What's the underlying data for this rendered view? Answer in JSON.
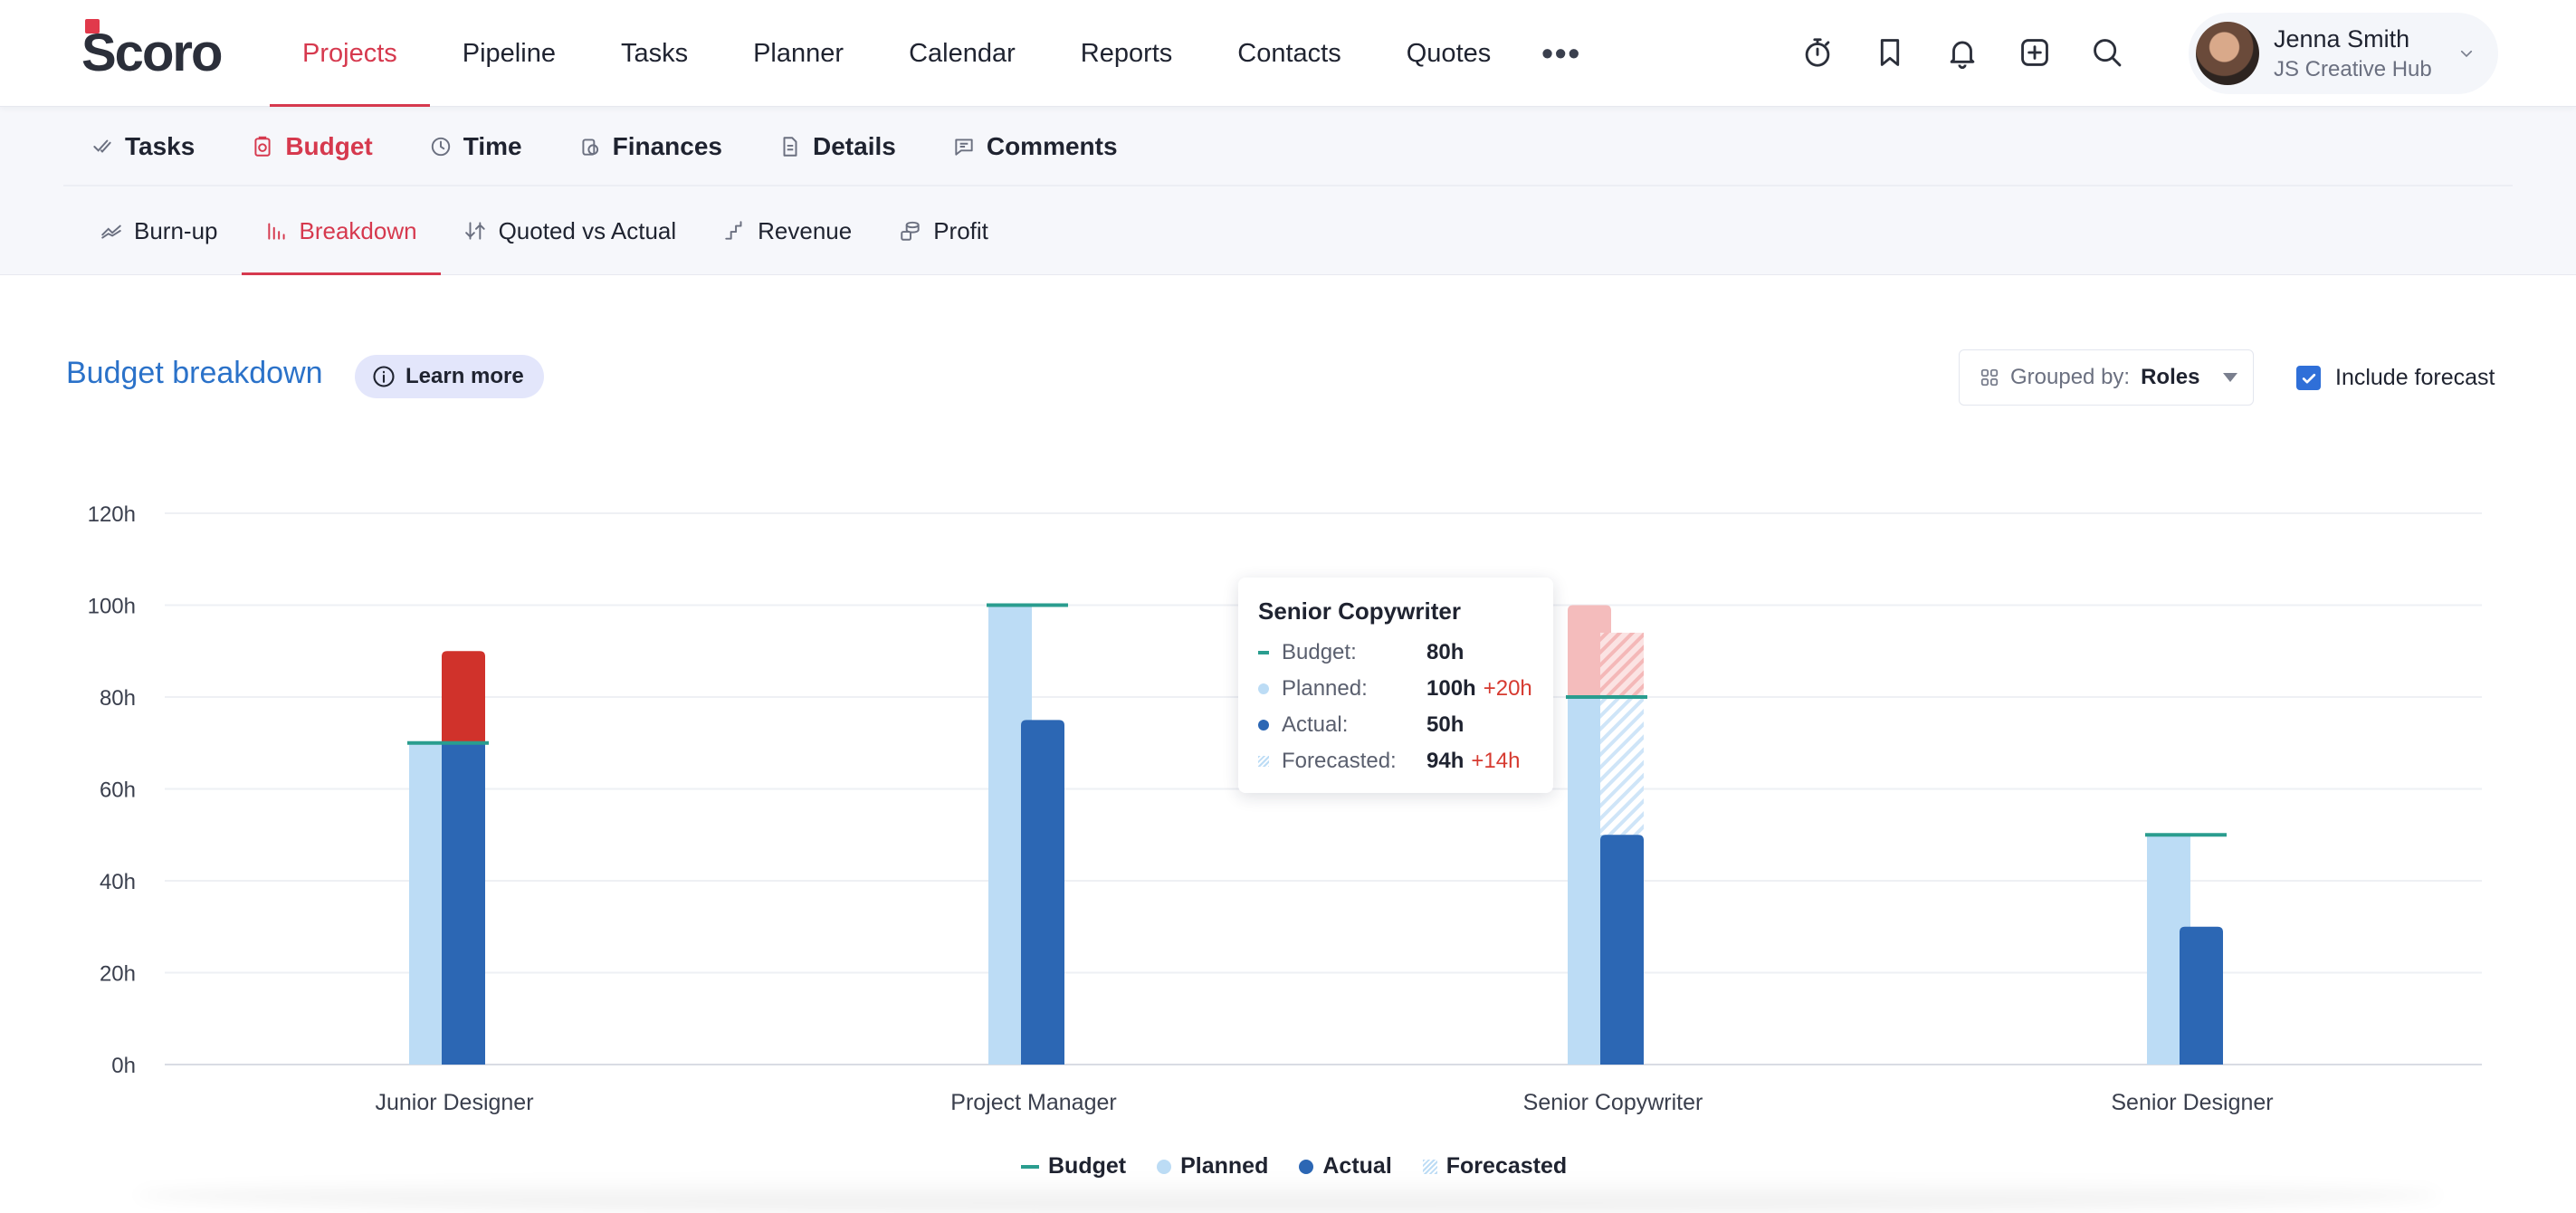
{
  "app": {
    "logo_text": "Scoro"
  },
  "mainnav": [
    {
      "label": "Projects",
      "active": true
    },
    {
      "label": "Pipeline"
    },
    {
      "label": "Tasks"
    },
    {
      "label": "Planner"
    },
    {
      "label": "Calendar"
    },
    {
      "label": "Reports"
    },
    {
      "label": "Contacts"
    },
    {
      "label": "Quotes"
    }
  ],
  "mainnav_more": "•••",
  "topicons": [
    "timer-icon",
    "bookmark-icon",
    "bell-icon",
    "add-square-icon",
    "search-icon"
  ],
  "user": {
    "name": "Jenna Smith",
    "org": "JS Creative Hub"
  },
  "subnav1": [
    {
      "label": "Tasks",
      "icon": "check-icon"
    },
    {
      "label": "Budget",
      "icon": "budget-icon",
      "active": true
    },
    {
      "label": "Time",
      "icon": "clock-icon"
    },
    {
      "label": "Finances",
      "icon": "coins-icon"
    },
    {
      "label": "Details",
      "icon": "document-icon"
    },
    {
      "label": "Comments",
      "icon": "comment-icon"
    }
  ],
  "subnav2": [
    {
      "label": "Burn-up",
      "icon": "burnup-icon"
    },
    {
      "label": "Breakdown",
      "icon": "bar-chart-icon",
      "active": true
    },
    {
      "label": "Quoted vs Actual",
      "icon": "quoted-actual-icon"
    },
    {
      "label": "Revenue",
      "icon": "revenue-icon"
    },
    {
      "label": "Profit",
      "icon": "profit-icon"
    }
  ],
  "header": {
    "title": "Budget breakdown",
    "learn_more": "Learn more",
    "grouped_label": "Grouped by:",
    "grouped_value": "Roles",
    "include_forecast_label": "Include forecast",
    "include_forecast_checked": true
  },
  "colors": {
    "accent": "#d6394e",
    "link_blue": "#2b72c9",
    "budget": "#2a9d8f",
    "planned": "#bcdcf5",
    "actual": "#2c67b4",
    "overrun": "#d0322b",
    "planned_overrun": "#f4bcbc"
  },
  "chart_data": {
    "type": "bar",
    "categories": [
      "Junior Designer",
      "Project Manager",
      "Senior Copywriter",
      "Senior Designer"
    ],
    "ylim": [
      0,
      120
    ],
    "yticks": [
      0,
      20,
      40,
      60,
      80,
      100,
      120
    ],
    "ytick_labels": [
      "0h",
      "20h",
      "40h",
      "60h",
      "80h",
      "100h",
      "120h"
    ],
    "series": [
      {
        "name": "Budget",
        "values": [
          70,
          100,
          80,
          50
        ]
      },
      {
        "name": "Planned",
        "values": [
          70,
          100,
          100,
          50
        ]
      },
      {
        "name": "Actual",
        "values": [
          90,
          75,
          50,
          30
        ]
      },
      {
        "name": "Forecasted",
        "values": [
          null,
          null,
          94,
          null
        ]
      }
    ],
    "grid": true,
    "legend_position": "bottom-center"
  },
  "tooltip": {
    "title": "Senior Copywriter",
    "rows": [
      {
        "label": "Budget:",
        "value": "80h",
        "delta": ""
      },
      {
        "label": "Planned:",
        "value": "100h",
        "delta": "+20h"
      },
      {
        "label": "Actual:",
        "value": "50h",
        "delta": ""
      },
      {
        "label": "Forecasted:",
        "value": "94h",
        "delta": "+14h"
      }
    ]
  },
  "legend": [
    {
      "label": "Budget",
      "key": "budget"
    },
    {
      "label": "Planned",
      "key": "planned"
    },
    {
      "label": "Actual",
      "key": "actual"
    },
    {
      "label": "Forecasted",
      "key": "forecast"
    }
  ]
}
